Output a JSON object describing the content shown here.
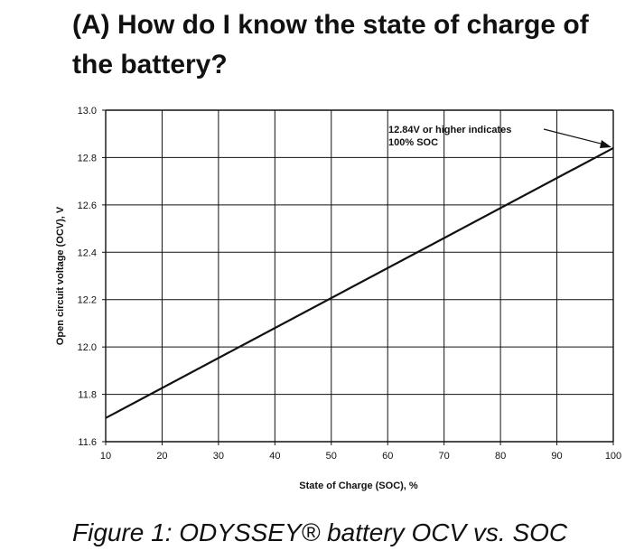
{
  "title": "(A) How do I know the state of charge of the battery?",
  "caption": "Figure 1: ODYSSEY® battery OCV vs. SOC",
  "chart_data": {
    "type": "line",
    "xlabel": "State of Charge (SOC), %",
    "ylabel": "Open circuit voltage (OCV), V",
    "xlim": [
      10,
      100
    ],
    "ylim": [
      11.6,
      13.0
    ],
    "x_ticks": [
      10,
      20,
      30,
      40,
      50,
      60,
      70,
      80,
      90,
      100
    ],
    "y_ticks": [
      11.6,
      11.8,
      12.0,
      12.2,
      12.4,
      12.6,
      12.8,
      13.0
    ],
    "y_tick_labels": [
      "11.6",
      "11.8",
      "12.0",
      "12.2",
      "12.4",
      "12.6",
      "12.8",
      "13.0"
    ],
    "grid": true,
    "series": [
      {
        "x": [
          10,
          100
        ],
        "y": [
          11.7,
          12.84
        ]
      }
    ],
    "annotation": {
      "lines": [
        "12.84V or higher indicates",
        "100% SOC"
      ],
      "points_to": {
        "x": 100,
        "y": 12.84
      }
    },
    "colors": {
      "line": "#111111",
      "grid": "#111111"
    }
  }
}
